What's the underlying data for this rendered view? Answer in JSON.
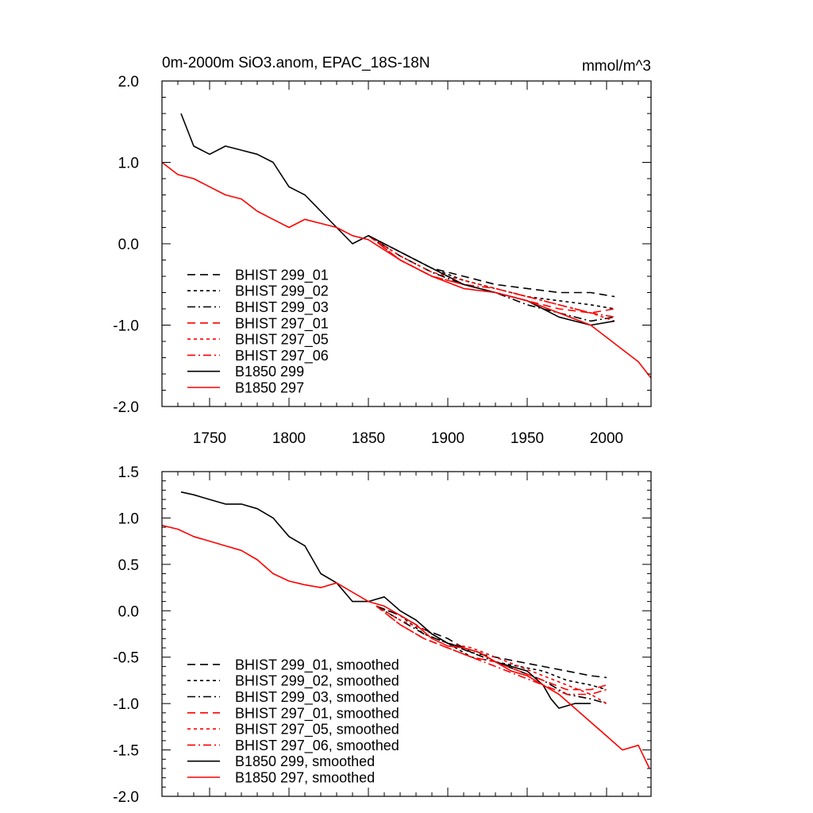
{
  "chart_data": [
    {
      "type": "line",
      "title": "0m-2000m SiO3.anom, EPAC_18S-18N",
      "units": "mmol/m^3",
      "xlim": [
        1720,
        2028
      ],
      "ylim": [
        -2.0,
        2.0
      ],
      "yticks": [
        2.0,
        1.0,
        0.0,
        -1.0,
        -2.0
      ],
      "ytick_labels": [
        "2.0",
        "1.0",
        "0.0",
        "-1.0",
        "-2.0"
      ],
      "xticks": [
        1750,
        1800,
        1850,
        1900,
        1950,
        2000
      ],
      "xtick_labels": [
        "1750",
        "1800",
        "1850",
        "1900",
        "1950",
        "2000"
      ],
      "legend_position": "bottom-left",
      "series": [
        {
          "name": "BHIST 299_01",
          "color": "#000000",
          "dash": "long-dash",
          "x": [
            1850,
            1870,
            1890,
            1910,
            1930,
            1950,
            1970,
            1990,
            2005
          ],
          "y": [
            0.1,
            -0.1,
            -0.3,
            -0.4,
            -0.5,
            -0.55,
            -0.6,
            -0.6,
            -0.65
          ]
        },
        {
          "name": "BHIST 299_02",
          "color": "#000000",
          "dash": "short-dash",
          "x": [
            1850,
            1870,
            1890,
            1910,
            1930,
            1950,
            1970,
            1990,
            2005
          ],
          "y": [
            0.1,
            -0.1,
            -0.3,
            -0.45,
            -0.55,
            -0.65,
            -0.7,
            -0.75,
            -0.8
          ]
        },
        {
          "name": "BHIST 299_03",
          "color": "#000000",
          "dash": "dash-dot",
          "x": [
            1850,
            1870,
            1890,
            1910,
            1930,
            1950,
            1970,
            1990,
            2005
          ],
          "y": [
            0.1,
            -0.15,
            -0.35,
            -0.5,
            -0.6,
            -0.75,
            -0.85,
            -0.95,
            -0.9
          ]
        },
        {
          "name": "BHIST 297_01",
          "color": "#ff0000",
          "dash": "long-dash",
          "x": [
            1850,
            1870,
            1890,
            1910,
            1930,
            1950,
            1970,
            1990,
            2005
          ],
          "y": [
            0.1,
            -0.2,
            -0.4,
            -0.5,
            -0.6,
            -0.7,
            -0.8,
            -0.85,
            -0.8
          ]
        },
        {
          "name": "BHIST 297_05",
          "color": "#ff0000",
          "dash": "short-dash",
          "x": [
            1850,
            1870,
            1890,
            1910,
            1930,
            1950,
            1970,
            1990,
            2005
          ],
          "y": [
            0.1,
            -0.15,
            -0.35,
            -0.45,
            -0.55,
            -0.65,
            -0.75,
            -0.85,
            -0.95
          ]
        },
        {
          "name": "BHIST 297_06",
          "color": "#ff0000",
          "dash": "dash-dot",
          "x": [
            1850,
            1870,
            1890,
            1910,
            1930,
            1950,
            1970,
            1990,
            2005
          ],
          "y": [
            0.1,
            -0.2,
            -0.4,
            -0.5,
            -0.55,
            -0.65,
            -0.75,
            -0.85,
            -0.9
          ]
        },
        {
          "name": "B1850 299",
          "color": "#000000",
          "dash": "solid",
          "x": [
            1732,
            1740,
            1750,
            1760,
            1770,
            1780,
            1790,
            1800,
            1810,
            1820,
            1830,
            1840,
            1850,
            1870,
            1890,
            1910,
            1930,
            1950,
            1970,
            1990,
            2005
          ],
          "y": [
            1.6,
            1.2,
            1.1,
            1.2,
            1.15,
            1.1,
            1.0,
            0.7,
            0.6,
            0.4,
            0.2,
            0.0,
            0.1,
            -0.1,
            -0.3,
            -0.5,
            -0.6,
            -0.7,
            -0.9,
            -1.0,
            -0.95
          ]
        },
        {
          "name": "B1850 297",
          "color": "#ff0000",
          "dash": "solid",
          "x": [
            1720,
            1730,
            1740,
            1750,
            1760,
            1770,
            1780,
            1790,
            1800,
            1810,
            1820,
            1830,
            1840,
            1850,
            1870,
            1890,
            1910,
            1930,
            1950,
            1970,
            1990,
            2000,
            2010,
            2020,
            2028
          ],
          "y": [
            1.0,
            0.85,
            0.8,
            0.7,
            0.6,
            0.55,
            0.4,
            0.3,
            0.2,
            0.3,
            0.25,
            0.2,
            0.1,
            0.05,
            -0.2,
            -0.4,
            -0.55,
            -0.6,
            -0.7,
            -0.85,
            -1.0,
            -1.15,
            -1.3,
            -1.45,
            -1.65
          ]
        }
      ]
    },
    {
      "type": "line",
      "xlim": [
        1720,
        2028
      ],
      "ylim": [
        -2.0,
        1.5
      ],
      "yticks": [
        1.5,
        1.0,
        0.5,
        0.0,
        -0.5,
        -1.0,
        -1.5,
        -2.0
      ],
      "ytick_labels": [
        "1.5",
        "1.0",
        "0.5",
        "0.0",
        "-0.5",
        "-1.0",
        "-1.5",
        "-2.0"
      ],
      "xticks": [
        1750,
        1800,
        1850,
        1900,
        1950,
        2000
      ],
      "legend_position": "bottom-left",
      "series": [
        {
          "name": "BHIST 299_01, smoothed",
          "color": "#000000",
          "dash": "long-dash",
          "x": [
            1855,
            1870,
            1885,
            1900,
            1915,
            1930,
            1945,
            1960,
            1975,
            1990,
            2000
          ],
          "y": [
            0.05,
            -0.05,
            -0.2,
            -0.3,
            -0.45,
            -0.5,
            -0.55,
            -0.6,
            -0.65,
            -0.7,
            -0.72
          ]
        },
        {
          "name": "BHIST 299_02, smoothed",
          "color": "#000000",
          "dash": "short-dash",
          "x": [
            1855,
            1870,
            1885,
            1900,
            1915,
            1930,
            1945,
            1960,
            1975,
            1990,
            2000
          ],
          "y": [
            0.05,
            -0.05,
            -0.25,
            -0.35,
            -0.5,
            -0.55,
            -0.6,
            -0.65,
            -0.75,
            -0.8,
            -0.85
          ]
        },
        {
          "name": "BHIST 299_03, smoothed",
          "color": "#000000",
          "dash": "dash-dot",
          "x": [
            1855,
            1870,
            1885,
            1900,
            1915,
            1930,
            1945,
            1960,
            1975,
            1990,
            2000
          ],
          "y": [
            0.05,
            -0.1,
            -0.25,
            -0.35,
            -0.45,
            -0.55,
            -0.65,
            -0.75,
            -0.9,
            -0.95,
            -1.0
          ]
        },
        {
          "name": "BHIST 297_01, smoothed",
          "color": "#ff0000",
          "dash": "long-dash",
          "x": [
            1855,
            1870,
            1885,
            1900,
            1915,
            1930,
            1945,
            1960,
            1975,
            1990,
            2000
          ],
          "y": [
            0.05,
            -0.15,
            -0.3,
            -0.4,
            -0.5,
            -0.55,
            -0.65,
            -0.75,
            -0.85,
            -0.85,
            -0.8
          ]
        },
        {
          "name": "BHIST 297_05, smoothed",
          "color": "#ff0000",
          "dash": "short-dash",
          "x": [
            1855,
            1870,
            1885,
            1900,
            1915,
            1930,
            1945,
            1960,
            1975,
            1990,
            2000
          ],
          "y": [
            0.05,
            -0.1,
            -0.2,
            -0.35,
            -0.4,
            -0.5,
            -0.6,
            -0.7,
            -0.8,
            -0.9,
            -1.0
          ]
        },
        {
          "name": "BHIST 297_06, smoothed",
          "color": "#ff0000",
          "dash": "dash-dot",
          "x": [
            1855,
            1870,
            1885,
            1900,
            1915,
            1930,
            1945,
            1960,
            1975,
            1990,
            2000
          ],
          "y": [
            0.05,
            -0.15,
            -0.3,
            -0.4,
            -0.5,
            -0.6,
            -0.7,
            -0.8,
            -0.9,
            -0.9,
            -0.85
          ]
        },
        {
          "name": "B1850 299, smoothed",
          "color": "#000000",
          "dash": "solid",
          "x": [
            1732,
            1740,
            1750,
            1760,
            1770,
            1780,
            1790,
            1800,
            1810,
            1820,
            1830,
            1840,
            1850,
            1860,
            1870,
            1880,
            1890,
            1900,
            1910,
            1920,
            1930,
            1940,
            1950,
            1960,
            1965,
            1970,
            1980,
            1990
          ],
          "y": [
            1.28,
            1.25,
            1.2,
            1.15,
            1.15,
            1.1,
            1.0,
            0.8,
            0.7,
            0.4,
            0.3,
            0.1,
            0.1,
            0.15,
            0.0,
            -0.1,
            -0.25,
            -0.35,
            -0.4,
            -0.45,
            -0.55,
            -0.6,
            -0.65,
            -0.8,
            -0.95,
            -1.05,
            -1.0,
            -1.0
          ]
        },
        {
          "name": "B1850 297, smoothed",
          "color": "#ff0000",
          "dash": "solid",
          "x": [
            1720,
            1730,
            1740,
            1750,
            1760,
            1770,
            1780,
            1790,
            1800,
            1810,
            1820,
            1830,
            1840,
            1850,
            1860,
            1870,
            1880,
            1890,
            1900,
            1910,
            1920,
            1930,
            1940,
            1950,
            1960,
            1970,
            1980,
            1990,
            2000,
            2010,
            2020,
            2027
          ],
          "y": [
            0.92,
            0.88,
            0.8,
            0.75,
            0.7,
            0.65,
            0.55,
            0.4,
            0.32,
            0.28,
            0.25,
            0.3,
            0.2,
            0.1,
            0.05,
            -0.05,
            -0.15,
            -0.3,
            -0.38,
            -0.4,
            -0.45,
            -0.55,
            -0.65,
            -0.7,
            -0.8,
            -0.9,
            -1.05,
            -1.2,
            -1.35,
            -1.5,
            -1.45,
            -1.7
          ]
        }
      ]
    }
  ]
}
